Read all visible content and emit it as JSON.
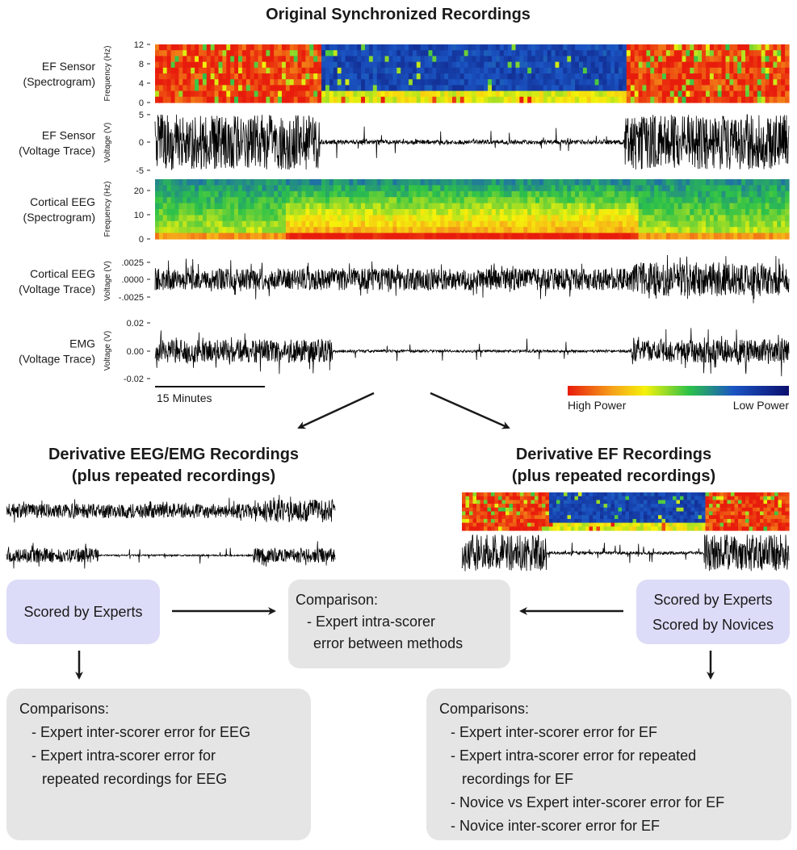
{
  "title": "Original Synchronized Recordings",
  "panels": [
    {
      "label": [
        "EF Sensor",
        "(Spectrogram)"
      ],
      "axis_label": "Frequency (Hz)",
      "ticks": [
        "12",
        "8",
        "4",
        "0"
      ]
    },
    {
      "label": [
        "EF Sensor",
        "(Voltage Trace)"
      ],
      "axis_label": "Voltage (V)",
      "ticks": [
        "5",
        "0",
        "-5"
      ]
    },
    {
      "label": [
        "Cortical EEG",
        "(Spectrogram)"
      ],
      "axis_label": "Frequency (Hz)",
      "ticks": [
        "20",
        "10",
        "0"
      ]
    },
    {
      "label": [
        "Cortical EEG",
        "(Voltage Trace)"
      ],
      "axis_label": "Voltage (V)",
      "ticks": [
        ".0025",
        ".0000",
        "-.0025"
      ]
    },
    {
      "label": [
        "EMG",
        "(Voltage Trace)"
      ],
      "axis_label": "Voltage (V)",
      "ticks": [
        "0.02",
        "0.00",
        "-0.02"
      ]
    }
  ],
  "scale_bar": "15 Minutes",
  "colorbar": {
    "high": "High Power",
    "low": "Low Power"
  },
  "left": {
    "title": [
      "Derivative EEG/EMG Recordings",
      "(plus repeated recordings)"
    ],
    "scored": [
      "Scored by Experts"
    ],
    "comparisons": {
      "heading": "Comparisons:",
      "lines": [
        "- Expert inter-scorer error for EEG",
        "- Expert intra-scorer error for",
        "repeated recordings for EEG"
      ]
    }
  },
  "right": {
    "title": [
      "Derivative EF Recordings",
      "(plus repeated recordings)"
    ],
    "scored": [
      "Scored by Experts",
      "Scored by Novices"
    ],
    "comparisons": {
      "heading": "Comparisons:",
      "lines": [
        "- Expert inter-scorer error for EF",
        "- Expert intra-scorer error for repeated",
        "recordings for EF",
        "- Novice vs Expert inter-scorer error for EF",
        "- Novice inter-scorer error for EF"
      ]
    }
  },
  "middle": {
    "heading": "Comparison:",
    "lines": [
      "- Expert intra-scorer",
      "error between methods"
    ]
  }
}
